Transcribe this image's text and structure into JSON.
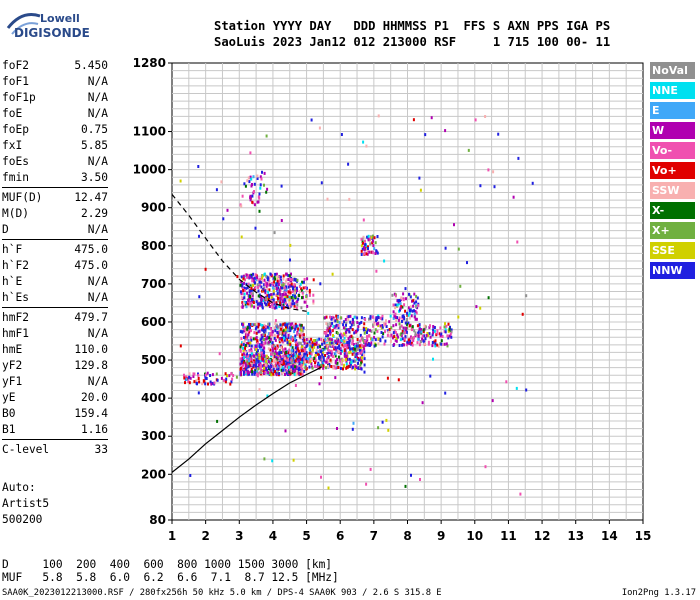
{
  "logo": {
    "line1": "Lowell",
    "line2": "DIGISONDE"
  },
  "header": {
    "line1": "Station YYYY DAY   DDD HHMMSS P1  FFS S AXN PPS IGA PS",
    "line2": "SaoLuis 2023 Jan12 012 213000 RSF     1 715 100 00- 11"
  },
  "params": [
    {
      "k": "foF2",
      "v": "5.450"
    },
    {
      "k": "foF1",
      "v": "N/A"
    },
    {
      "k": "foF1p",
      "v": "N/A"
    },
    {
      "k": "foE",
      "v": "N/A"
    },
    {
      "k": "foEp",
      "v": "0.75"
    },
    {
      "k": "fxI",
      "v": "5.85"
    },
    {
      "k": "foEs",
      "v": "N/A"
    },
    {
      "k": "fmin",
      "v": "3.50"
    },
    {
      "k": "MUF(D)",
      "v": "12.47"
    },
    {
      "k": "M(D)",
      "v": "2.29"
    },
    {
      "k": "D",
      "v": "N/A"
    },
    {
      "k": "h`F",
      "v": "475.0"
    },
    {
      "k": "h`F2",
      "v": "475.0"
    },
    {
      "k": "h`E",
      "v": "N/A"
    },
    {
      "k": "h`Es",
      "v": "N/A"
    },
    {
      "k": "hmF2",
      "v": "479.7"
    },
    {
      "k": "hmF1",
      "v": "N/A"
    },
    {
      "k": "hmE",
      "v": "110.0"
    },
    {
      "k": "yF2",
      "v": "129.8"
    },
    {
      "k": "yF1",
      "v": "N/A"
    },
    {
      "k": "yE",
      "v": "20.0"
    },
    {
      "k": "B0",
      "v": "159.4"
    },
    {
      "k": "B1",
      "v": "1.16"
    },
    {
      "k": "C-level",
      "v": "33"
    }
  ],
  "auto": {
    "l1": "Auto:",
    "l2": "Artist5",
    "l3": "500200"
  },
  "legend": [
    {
      "label": "NoVal",
      "color": "#909090"
    },
    {
      "label": "NNE",
      "color": "#00e0f0"
    },
    {
      "label": "E",
      "color": "#40a8f8"
    },
    {
      "label": "W",
      "color": "#b000b0"
    },
    {
      "label": "Vo-",
      "color": "#f050b0"
    },
    {
      "label": "Vo+",
      "color": "#e00000"
    },
    {
      "label": "SSW",
      "color": "#f8b0b0"
    },
    {
      "label": "X-",
      "color": "#007000"
    },
    {
      "label": "X+",
      "color": "#70b040"
    },
    {
      "label": "SSE",
      "color": "#d0d000"
    },
    {
      "label": "NNW",
      "color": "#2020e0"
    }
  ],
  "muf_table": {
    "d_line": "D     100  200  400  600  800 1000 1500 3000 [km]",
    "muf_line": "MUF   5.8  5.8  6.0  6.2  6.6  7.1  8.7 12.5 [MHz]"
  },
  "footer": "SAA0K_2023012213000.RSF / 280fx256h 50 kHz 5.0 km / DPS-4 SAA0K 903 / 2.6 S 315.8 E",
  "version": "Ion2Png 1.3.17",
  "chart_data": {
    "type": "scatter",
    "xlim": [
      1,
      15
    ],
    "ylim": [
      80,
      1280
    ],
    "x_ticks": [
      1,
      2,
      3,
      4,
      5,
      6,
      7,
      8,
      9,
      10,
      11,
      12,
      13,
      14,
      15
    ],
    "y_ticks": [
      80,
      200,
      300,
      400,
      500,
      600,
      700,
      800,
      900,
      1000,
      1100,
      1280
    ],
    "grid": true,
    "profile_curve": [
      [
        1.0,
        205
      ],
      [
        1.5,
        240
      ],
      [
        2.0,
        280
      ],
      [
        2.5,
        315
      ],
      [
        3.0,
        350
      ],
      [
        3.5,
        382
      ],
      [
        4.0,
        412
      ],
      [
        4.5,
        440
      ],
      [
        5.0,
        462
      ],
      [
        5.3,
        475
      ],
      [
        5.45,
        482
      ]
    ],
    "muf_curve": [
      [
        1.0,
        935
      ],
      [
        1.5,
        880
      ],
      [
        2.0,
        820
      ],
      [
        2.5,
        760
      ],
      [
        3.0,
        712
      ],
      [
        3.5,
        678
      ],
      [
        4.0,
        650
      ],
      [
        4.5,
        635
      ],
      [
        5.0,
        628
      ]
    ],
    "echo_clusters": [
      {
        "x": [
          3.0,
          4.9
        ],
        "y": [
          465,
          520
        ],
        "n": 520
      },
      {
        "x": [
          3.0,
          4.9
        ],
        "y": [
          520,
          600
        ],
        "n": 420
      },
      {
        "x": [
          3.0,
          4.7
        ],
        "y": [
          640,
          730
        ],
        "n": 380
      },
      {
        "x": [
          4.9,
          6.7
        ],
        "y": [
          480,
          560
        ],
        "n": 380
      },
      {
        "x": [
          5.5,
          8.0
        ],
        "y": [
          540,
          620
        ],
        "n": 320
      },
      {
        "x": [
          7.5,
          8.3
        ],
        "y": [
          610,
          680
        ],
        "n": 80
      },
      {
        "x": [
          8.0,
          9.3
        ],
        "y": [
          540,
          600
        ],
        "n": 120
      },
      {
        "x": [
          6.6,
          7.1
        ],
        "y": [
          780,
          830
        ],
        "n": 60
      },
      {
        "x": [
          3.0,
          3.8
        ],
        "y": [
          905,
          1000
        ],
        "n": 40
      },
      {
        "x": [
          1.3,
          2.8
        ],
        "y": [
          440,
          470
        ],
        "n": 60
      },
      {
        "x": [
          4.0,
          5.2
        ],
        "y": [
          640,
          720
        ],
        "n": 100
      }
    ]
  }
}
